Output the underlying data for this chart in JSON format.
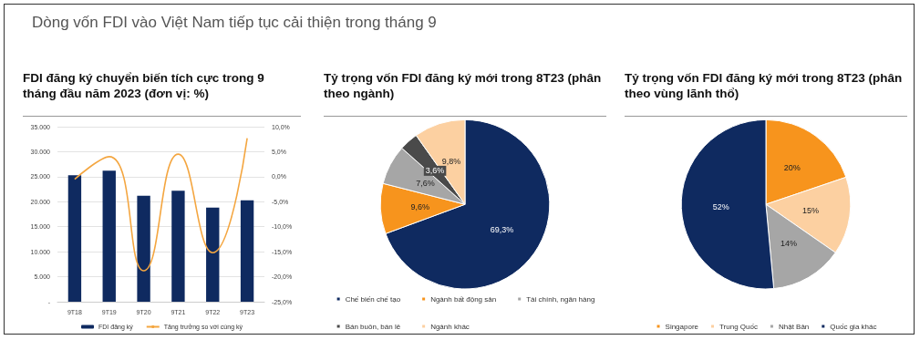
{
  "chart_data": [
    {
      "type": "bar",
      "title": "FDI đăng ký chuyển biến tích cực trong 9 tháng đầu năm 2023 (đơn vị: %)",
      "annotations": [
        "Dòng vốn FDI vào Việt Nam tiếp tục cải thiện trong tháng 9"
      ],
      "categories": [
        "9T18",
        "9T19",
        "9T20",
        "9T21",
        "9T22",
        "9T23"
      ],
      "series": [
        {
          "name": "FDI đăng ký",
          "type": "bar",
          "color": "#0f2a60",
          "values": [
            25300,
            26200,
            21200,
            22200,
            18800,
            20300
          ]
        },
        {
          "name": "Tăng trưởng so với cùng kỳ",
          "type": "line",
          "axis": "y2",
          "color": "#f4a640",
          "values": [
            -0.5,
            4.0,
            -18.8,
            4.5,
            -15.2,
            7.7
          ]
        }
      ],
      "ylim": [
        0,
        35000
      ],
      "yticks": [
        {
          "value": 0,
          "label": "-"
        },
        {
          "value": 5000,
          "label": "5.000"
        },
        {
          "value": 10000,
          "label": "10.000"
        },
        {
          "value": 15000,
          "label": "15.000"
        },
        {
          "value": 20000,
          "label": "20.000"
        },
        {
          "value": 25000,
          "label": "25.000"
        },
        {
          "value": 30000,
          "label": "30.000"
        },
        {
          "value": 35000,
          "label": "35.000"
        }
      ],
      "y2lim": [
        -25,
        10
      ],
      "y2ticks": [
        {
          "value": -25,
          "label": "-25,0%"
        },
        {
          "value": -20,
          "label": "-20,0%"
        },
        {
          "value": -15,
          "label": "-15,0%"
        },
        {
          "value": -10,
          "label": "-10,0%"
        },
        {
          "value": -5,
          "label": "-5,0%"
        },
        {
          "value": 0,
          "label": "0,0%"
        },
        {
          "value": 5,
          "label": "5,0%"
        },
        {
          "value": 10,
          "label": "10,0%"
        }
      ],
      "grid": "y",
      "legend": "bottom",
      "marker": "none",
      "line_style": "solid"
    },
    {
      "type": "pie",
      "title": "Tỷ trọng vốn FDI đăng ký mới trong 8T23 (phân theo ngành)",
      "categories": [
        "Chế biến chế tạo",
        "Ngành bất động sản",
        "Tài chính, ngân hàng",
        "Bán buôn, bán lẻ",
        "Ngành khác"
      ],
      "values": [
        69.3,
        9.6,
        7.6,
        3.6,
        9.8
      ],
      "value_labels": [
        "69,3%",
        "9,6%",
        "7,6%",
        "3,6%",
        "9,8%"
      ],
      "colors": [
        "#0f2a60",
        "#f7941d",
        "#a6a6a6",
        "#4a4a4a",
        "#fcd0a1"
      ],
      "legend": "bottom"
    },
    {
      "type": "pie",
      "title": "Tỷ trọng vốn FDI đăng ký mới trong 8T23 (phân theo vùng lãnh thổ)",
      "categories": [
        "Singapore",
        "Trung Quốc",
        "Nhật Bản",
        "Quốc gia khác"
      ],
      "values": [
        20,
        15,
        14,
        52
      ],
      "value_labels": [
        "20%",
        "15%",
        "14%",
        "52%"
      ],
      "colors": [
        "#f7941d",
        "#fcd0a1",
        "#a6a6a6",
        "#0f2a60"
      ],
      "legend": "bottom"
    }
  ]
}
